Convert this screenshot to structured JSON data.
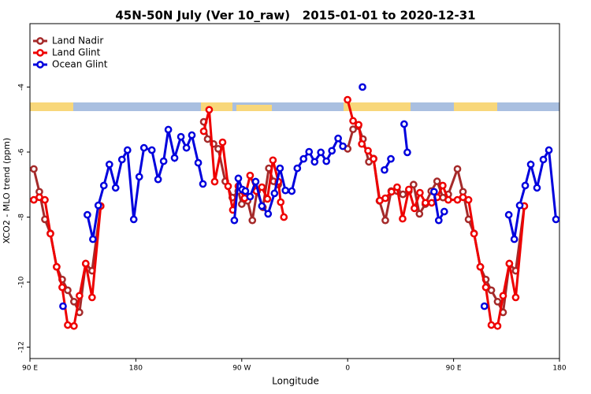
{
  "chart_data": {
    "type": "line",
    "title": "45N-50N July (Ver 10_raw)   2015-01-01 to 2020-12-31",
    "x_label": "Longitude",
    "y_label": "XCO2 - MLO trend (ppm)",
    "xlim": [
      90,
      540
    ],
    "ylim": [
      -12.35,
      -2.05
    ],
    "xticks": [
      {
        "value": 90,
        "label": "90 E"
      },
      180,
      {
        "value": 270,
        "label": "90 W"
      },
      {
        "value": 360,
        "label": "0"
      },
      {
        "value": 450,
        "label": "90 E"
      },
      {
        "value": 540,
        "label": "180"
      }
    ],
    "yticks": [
      -4,
      -6,
      -8,
      -10,
      -12
    ],
    "legend": "upper left",
    "series": [
      {
        "name": "Land Nadir",
        "color": "#a52a2a",
        "x": [
          93.3,
          98,
          102.7,
          107.4,
          112.7,
          117.4,
          122.1,
          127.4,
          132.1,
          137.4,
          142.8,
          150.1,
          null,
          237.7,
          241,
          246,
          250,
          256,
          262,
          267,
          270,
          275,
          279,
          283,
          288,
          293,
          297,
          301,
          null,
          360,
          364.6,
          369,
          373,
          378,
          382,
          387,
          392,
          397,
          402,
          407,
          412,
          416,
          421,
          426,
          431,
          436,
          441,
          445.5,
          453.3,
          458,
          462.7,
          467.4,
          472.7,
          477.4,
          482.1,
          487.4,
          492.1,
          497.4,
          502.8,
          510.1
        ],
        "values": [
          -6.52,
          -7.22,
          -8.07,
          -8.5,
          -9.53,
          -9.92,
          -10.25,
          -10.6,
          -10.93,
          -9.43,
          -9.65,
          -7.66,
          null,
          -5.07,
          -5.6,
          -5.75,
          -5.9,
          -6.9,
          -7.4,
          -7.2,
          -7.6,
          -7.5,
          -8.1,
          -7.2,
          -7.7,
          -6.5,
          -6.9,
          -7.0,
          null,
          -5.9,
          -5.3,
          -5.2,
          -5.6,
          -6.3,
          -6.2,
          -7.5,
          -8.1,
          -7.2,
          -7.2,
          -7.3,
          -7.2,
          -7.0,
          -7.9,
          -7.6,
          -7.2,
          -6.9,
          -7.4,
          -7.3,
          -6.52,
          -7.22,
          -8.07,
          -8.5,
          -9.53,
          -9.92,
          -10.25,
          -10.6,
          -10.93,
          -9.43,
          -9.65,
          -7.66
        ]
      },
      {
        "name": "Land Glint",
        "color": "#ee0000",
        "x": [
          93.3,
          98,
          102.7,
          107.4,
          112.7,
          117.4,
          122.1,
          127.4,
          132.1,
          137.4,
          142.8,
          150.1,
          null,
          237.7,
          242.3,
          247,
          253.7,
          258.4,
          262.4,
          267.1,
          272.4,
          277.1,
          282.4,
          287.1,
          291.8,
          296.5,
          301.1,
          303.1,
          305.8,
          null,
          359.9,
          364.6,
          369.3,
          372,
          377.3,
          382,
          387.3,
          392,
          397.3,
          402,
          406.7,
          412,
          416.7,
          421.4,
          426.1,
          431.4,
          436.1,
          440.8,
          445.5,
          453.3,
          458,
          462.7,
          467.4,
          472.7,
          477.4,
          482.1,
          487.4,
          492.1,
          497.4,
          502.8,
          510.1
        ],
        "values": [
          -7.47,
          -7.39,
          -7.47,
          -8.51,
          -9.53,
          -10.16,
          -11.32,
          -11.35,
          -10.42,
          -9.43,
          -10.47,
          -7.66,
          null,
          -5.36,
          -4.7,
          -6.91,
          -5.7,
          -7.05,
          -7.78,
          -7.05,
          -7.42,
          -6.72,
          -7.2,
          -7.08,
          -7.44,
          -6.25,
          -6.91,
          -7.54,
          -8.0,
          null,
          -4.39,
          -5.04,
          -5.16,
          -5.75,
          -5.96,
          -6.21,
          -7.49,
          -7.42,
          -7.22,
          -7.08,
          -8.05,
          -7.15,
          -7.73,
          -7.25,
          -7.56,
          -7.56,
          -7.39,
          -7.03,
          -7.47,
          -7.47,
          -7.39,
          -7.47,
          -8.51,
          -9.53,
          -10.16,
          -11.32,
          -11.35,
          -10.42,
          -9.43,
          -10.47,
          -7.66
        ]
      },
      {
        "name": "Ocean Glint",
        "color": "#0000dd",
        "x": [
          118.1,
          null,
          138.8,
          143.5,
          148.1,
          152.8,
          157.5,
          162.8,
          168.2,
          172.9,
          178.2,
          182.9,
          186.9,
          193.6,
          198.9,
          203.6,
          207.6,
          212.9,
          218.3,
          223,
          227.6,
          233,
          237,
          null,
          263.7,
          267.1,
          270.4,
          273.1,
          277.1,
          281.8,
          287.1,
          292.4,
          297.8,
          302.5,
          307.1,
          312.5,
          317.2,
          322.5,
          327.2,
          331.9,
          337.2,
          341.9,
          346.6,
          351.9,
          355.9,
          null,
          372.6,
          null,
          391.3,
          396.7,
          null,
          408,
          410.7,
          null,
          433.4,
          437.4,
          442.1,
          null,
          476.2,
          null,
          496.9,
          501.6,
          506.2,
          510.9,
          515.6,
          520.9,
          526.3,
          531,
          537
        ],
        "values": [
          -10.74,
          null,
          -7.93,
          -8.68,
          -7.64,
          -7.03,
          -6.38,
          -7.1,
          -6.23,
          -5.94,
          -8.07,
          -6.76,
          -5.87,
          -5.94,
          -6.84,
          -6.28,
          -5.31,
          -6.18,
          -5.53,
          -5.87,
          -5.48,
          -6.33,
          -6.98,
          null,
          -8.1,
          -6.81,
          -7.15,
          -7.2,
          -7.37,
          -6.91,
          -7.66,
          -7.9,
          -7.27,
          -6.5,
          -7.18,
          -7.2,
          -6.5,
          -6.21,
          -5.99,
          -6.3,
          -6.01,
          -6.28,
          -5.96,
          -5.58,
          -5.82,
          null,
          -4.0,
          null,
          -6.55,
          -6.21,
          null,
          -5.14,
          -6.01,
          null,
          -7.22,
          -8.1,
          -7.83,
          null,
          -10.74,
          null,
          -7.93,
          -8.68,
          -7.64,
          -7.03,
          -6.38,
          -7.1,
          -6.23,
          -5.94,
          -8.07
        ]
      }
    ]
  }
}
